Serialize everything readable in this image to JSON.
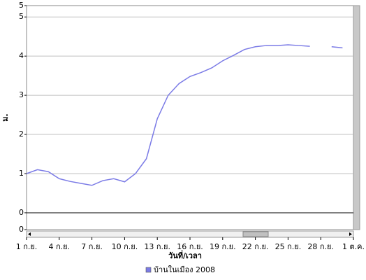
{
  "chart_data": {
    "type": "line",
    "x_label": "วันที่/เวลา",
    "y_label": "ม.",
    "x": [
      1,
      2,
      3,
      4,
      5,
      6,
      7,
      8,
      9,
      10,
      11,
      12,
      13,
      14,
      15,
      16,
      17,
      18,
      19,
      20,
      21,
      22,
      23,
      24,
      25,
      26,
      27,
      28,
      29,
      30
    ],
    "series": [
      {
        "name": "บ้านในเมือง 2008",
        "color": "#7b7be6",
        "values": [
          1.0,
          1.1,
          1.05,
          0.87,
          0.8,
          0.75,
          0.7,
          0.82,
          0.87,
          0.79,
          1.0,
          1.38,
          2.4,
          3.0,
          3.3,
          3.48,
          3.58,
          3.7,
          3.88,
          4.02,
          4.17,
          4.24,
          4.27,
          4.27,
          4.29,
          4.27,
          4.25,
          null,
          4.24,
          4.21
        ]
      }
    ],
    "xlim": [
      1,
      31
    ],
    "xticks": [
      {
        "value": 1,
        "label": "1 ก.ย."
      },
      {
        "value": 4,
        "label": "4 ก.ย."
      },
      {
        "value": 7,
        "label": "7 ก.ย."
      },
      {
        "value": 10,
        "label": "10 ก.ย."
      },
      {
        "value": 13,
        "label": "13 ก.ย."
      },
      {
        "value": 16,
        "label": "16 ก.ย."
      },
      {
        "value": 19,
        "label": "19 ก.ย."
      },
      {
        "value": 22,
        "label": "22 ก.ย."
      },
      {
        "value": 25,
        "label": "25 ก.ย."
      },
      {
        "value": 28,
        "label": "28 ก.ย."
      },
      {
        "value": 31,
        "label": "1 ต.ค."
      }
    ],
    "ylim": [
      -0.43,
      5.29
    ],
    "yticks": [
      {
        "value": -0.43,
        "label": "0"
      },
      0,
      1,
      2,
      3,
      4,
      5,
      {
        "value": 5.29,
        "label": "5"
      }
    ],
    "grid": true,
    "legend": "bottom"
  }
}
